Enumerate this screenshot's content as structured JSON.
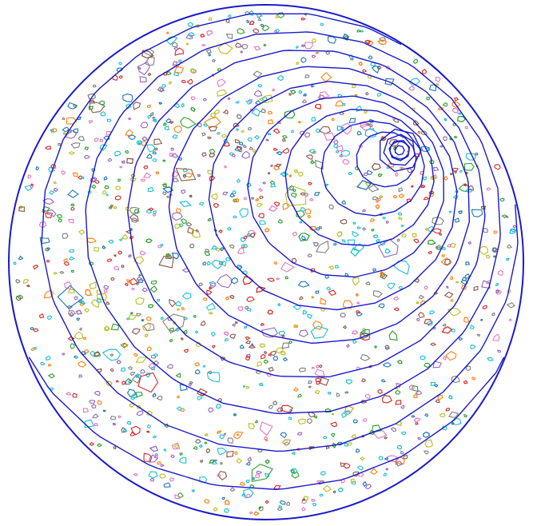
{
  "diagram": {
    "shape": "circle",
    "ring_count": 16,
    "particle_count": 1400,
    "large_particle_count": 10
  },
  "colors": {
    "background": "#ffffff",
    "boundary": "#1a1acc",
    "contours": "#1a1acc",
    "particles": [
      "#d62728",
      "#1f77b4",
      "#2ca02c",
      "#ff7f0e",
      "#9467bd",
      "#17becf",
      "#bcbd22",
      "#e377c2",
      "#8c564b",
      "#7f7f7f",
      "#1fbfd9"
    ]
  }
}
